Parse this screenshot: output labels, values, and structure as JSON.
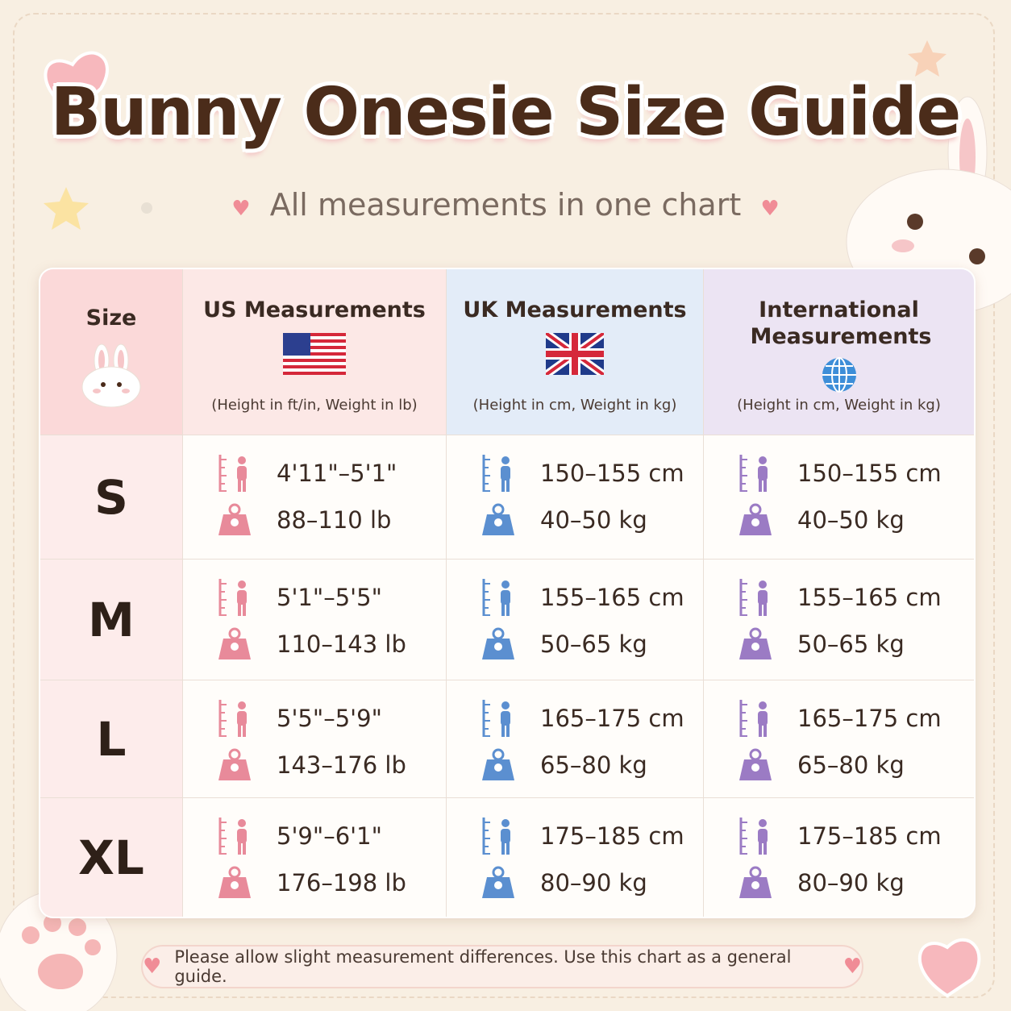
{
  "header": {
    "title": "Bunny Onesie Size Guide",
    "subtitle": "All measurements in one chart"
  },
  "table": {
    "columns": [
      {
        "label": "Size"
      },
      {
        "label": "US Measurements",
        "units": "(Height in ft/in,  Weight in lb)"
      },
      {
        "label": "UK Measurements",
        "units": "(Height in cm,  Weight in kg)"
      },
      {
        "label": "International Measurements",
        "units": "(Height in cm,  Weight in kg)"
      }
    ],
    "rows": [
      {
        "size": "S",
        "cells": [
          {
            "height": "4'11\"–5'1\"",
            "weight": "88–110 lb"
          },
          {
            "height": "150–155 cm",
            "weight": "40–50 kg"
          },
          {
            "height": "150–155 cm",
            "weight": "40–50 kg"
          }
        ]
      },
      {
        "size": "M",
        "cells": [
          {
            "height": "5'1\"–5'5\"",
            "weight": "110–143 lb"
          },
          {
            "height": "155–165 cm",
            "weight": "50–65 kg"
          },
          {
            "height": "155–165 cm",
            "weight": "50–65 kg"
          }
        ]
      },
      {
        "size": "L",
        "cells": [
          {
            "height": "5'5\"–5'9\"",
            "weight": "143–176 lb"
          },
          {
            "height": "165–175 cm",
            "weight": "65–80 kg"
          },
          {
            "height": "165–175 cm",
            "weight": "65–80 kg"
          }
        ]
      },
      {
        "size": "XL",
        "cells": [
          {
            "height": "5'9\"–6'1\"",
            "weight": "176–198 lb"
          },
          {
            "height": "175–185 cm",
            "weight": "80–90 kg"
          },
          {
            "height": "175–185 cm",
            "weight": "80–90 kg"
          }
        ]
      }
    ]
  },
  "footer": {
    "note": "Please allow slight measurement differences. Use this chart as a general guide."
  }
}
